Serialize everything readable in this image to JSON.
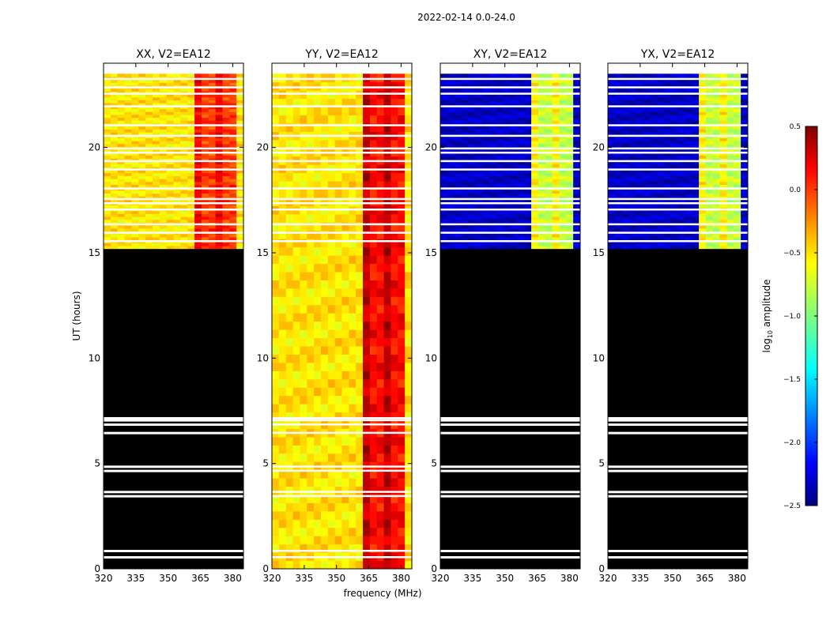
{
  "suptitle": "2022-02-14 0.0-24.0",
  "xlabel": "frequency (MHz)",
  "ylabel": "UT (hours)",
  "colorbar": {
    "label_main": "log",
    "label_sub": "10",
    "label_tail": " amplitude",
    "range": [
      -2.5,
      0.5
    ],
    "ticks": [
      0.5,
      0.0,
      -0.5,
      -1.0,
      -1.5,
      -2.0,
      -2.5
    ],
    "tick_labels": [
      "0.5",
      "0.0",
      "−0.5",
      "−1.0",
      "−1.5",
      "−2.0",
      "−2.5"
    ]
  },
  "chart_data": {
    "type": "heatmap",
    "x_range": [
      320,
      385
    ],
    "y_range": [
      0,
      24
    ],
    "x_ticks": [
      320,
      335,
      350,
      365,
      380
    ],
    "y_ticks": [
      0,
      5,
      10,
      15,
      20
    ],
    "panels": [
      {
        "title": "XX, V2=EA12",
        "base_level": -0.55,
        "band_level": -0.05,
        "data_start_hour": 15.2,
        "black_below": true
      },
      {
        "title": "YY, V2=EA12",
        "base_level": -0.55,
        "band_level": 0.1,
        "data_start_hour": 0,
        "black_below": false
      },
      {
        "title": "XY, V2=EA12",
        "base_level": -2.3,
        "band_level": -0.8,
        "data_start_hour": 15.2,
        "black_below": true
      },
      {
        "title": "YX, V2=EA12",
        "base_level": -2.3,
        "band_level": -0.8,
        "data_start_hour": 15.2,
        "black_below": true
      }
    ],
    "rfi_band_MHz": [
      362,
      381
    ],
    "flagged_hours": [
      23.3,
      22.9,
      22.6,
      22.0,
      21.1,
      20.6,
      20.0,
      19.8,
      19.4,
      19.0,
      18.1,
      17.6,
      17.4,
      17.1,
      16.4,
      16.0,
      15.6,
      7.2,
      7.1,
      6.9,
      6.5,
      4.9,
      4.7,
      3.7,
      3.5,
      0.9,
      0.6
    ]
  }
}
